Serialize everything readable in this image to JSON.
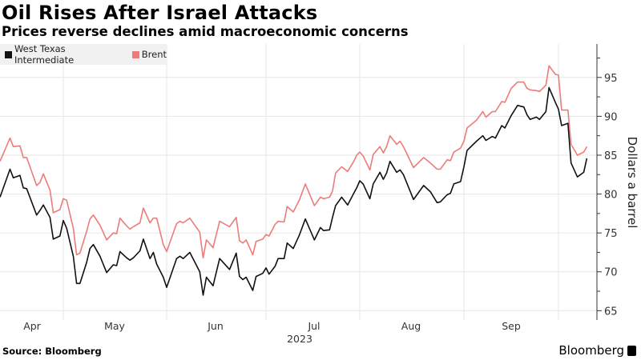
{
  "header": {
    "title": "Oil Rises After Israel Attacks",
    "subtitle": "Prices reverse declines amid macroeconomic concerns"
  },
  "footer": {
    "source": "Source: Bloomberg",
    "logo": "Bloomberg"
  },
  "chart_data": {
    "type": "line",
    "title": "Oil Rises After Israel Attacks",
    "subtitle": "Prices reverse declines amid macroeconomic concerns",
    "ylabel": "Dollars a barrel",
    "xlabel": "2023",
    "x_tick_labels": [
      "Apr",
      "May",
      "Jun",
      "Jul",
      "Aug",
      "Sep"
    ],
    "y_ticks": [
      65,
      70,
      75,
      80,
      85,
      90,
      95
    ],
    "ylim": [
      63.8,
      99.3
    ],
    "y_axis_side": "right",
    "grid": true,
    "legend_placement": "top-left",
    "x": [
      "2023-04-12",
      "2023-04-15",
      "2023-04-16",
      "2023-04-18",
      "2023-04-19",
      "2023-04-20",
      "2023-04-23",
      "2023-04-24",
      "2023-04-25",
      "2023-04-27",
      "2023-04-28",
      "2023-04-30",
      "2023-05-01",
      "2023-05-02",
      "2023-05-04",
      "2023-05-05",
      "2023-05-06",
      "2023-05-08",
      "2023-05-09",
      "2023-05-10",
      "2023-05-12",
      "2023-05-14",
      "2023-05-16",
      "2023-05-17",
      "2023-05-18",
      "2023-05-20",
      "2023-05-21",
      "2023-05-22",
      "2023-05-24",
      "2023-05-25",
      "2023-05-27",
      "2023-05-28",
      "2023-05-29",
      "2023-05-31",
      "2023-06-01",
      "2023-06-04",
      "2023-06-05",
      "2023-06-06",
      "2023-06-08",
      "2023-06-11",
      "2023-06-12",
      "2023-06-13",
      "2023-06-15",
      "2023-06-17",
      "2023-06-20",
      "2023-06-22",
      "2023-06-23",
      "2023-06-24",
      "2023-06-25",
      "2023-06-27",
      "2023-06-28",
      "2023-06-30",
      "2023-07-01",
      "2023-07-02",
      "2023-07-04",
      "2023-07-05",
      "2023-07-07",
      "2023-07-08",
      "2023-07-10",
      "2023-07-12",
      "2023-07-14",
      "2023-07-17",
      "2023-07-19",
      "2023-07-20",
      "2023-07-22",
      "2023-07-23",
      "2023-07-24",
      "2023-07-26",
      "2023-07-28",
      "2023-07-30",
      "2023-07-31",
      "2023-08-01",
      "2023-08-02",
      "2023-08-04",
      "2023-08-05",
      "2023-08-07",
      "2023-08-08",
      "2023-08-09",
      "2023-08-10",
      "2023-08-12",
      "2023-08-13",
      "2023-08-14",
      "2023-08-17",
      "2023-08-20",
      "2023-08-22",
      "2023-08-24",
      "2023-08-25",
      "2023-08-27",
      "2023-08-28",
      "2023-08-29",
      "2023-08-31",
      "2023-09-01",
      "2023-09-02",
      "2023-09-05",
      "2023-09-07",
      "2023-09-08",
      "2023-09-10",
      "2023-09-11",
      "2023-09-13",
      "2023-09-14",
      "2023-09-16",
      "2023-09-18",
      "2023-09-20",
      "2023-09-21",
      "2023-09-22",
      "2023-09-24",
      "2023-09-25",
      "2023-09-27",
      "2023-09-28",
      "2023-09-30",
      "2023-10-01",
      "2023-10-02",
      "2023-10-04",
      "2023-10-05",
      "2023-10-07",
      "2023-10-09",
      "2023-10-10"
    ],
    "series": [
      {
        "name": "West Texas Intermediate",
        "color": "#111111",
        "values": [
          79.6,
          83.2,
          82.1,
          82.4,
          80.8,
          80.7,
          77.3,
          77.9,
          78.6,
          77.0,
          74.2,
          74.6,
          76.6,
          75.6,
          72.0,
          68.5,
          68.5,
          71.2,
          73.0,
          73.5,
          72.0,
          69.9,
          70.9,
          70.8,
          72.6,
          71.8,
          71.5,
          71.8,
          72.7,
          74.2,
          71.7,
          72.5,
          71.0,
          69.3,
          68.0,
          71.7,
          72.0,
          71.7,
          72.5,
          70.0,
          67.0,
          69.3,
          68.2,
          71.7,
          70.3,
          72.4,
          69.4,
          69.0,
          69.3,
          67.6,
          69.4,
          69.8,
          70.5,
          69.7,
          70.7,
          71.7,
          71.7,
          73.7,
          73.0,
          74.7,
          76.8,
          74.1,
          75.7,
          75.3,
          75.4,
          77.0,
          78.5,
          79.6,
          78.6,
          80.1,
          80.8,
          81.7,
          81.3,
          79.4,
          81.3,
          82.8,
          81.9,
          82.7,
          84.2,
          82.8,
          83.1,
          82.5,
          79.3,
          81.1,
          80.3,
          78.9,
          79.0,
          79.9,
          80.1,
          81.3,
          81.6,
          83.5,
          85.6,
          86.8,
          87.5,
          86.9,
          87.4,
          87.2,
          88.8,
          88.5,
          90.1,
          91.4,
          91.2,
          90.2,
          89.6,
          89.9,
          89.6,
          90.6,
          93.7,
          91.8,
          90.9,
          88.8,
          89.1,
          84.0,
          82.2,
          82.8,
          84.6
        ]
      },
      {
        "name": "Brent",
        "color": "#ec7b7a",
        "values": [
          84.2,
          87.2,
          86.1,
          86.2,
          84.7,
          84.7,
          81.1,
          81.5,
          82.6,
          80.5,
          77.6,
          78.0,
          79.4,
          79.2,
          75.6,
          72.2,
          72.4,
          75.2,
          76.8,
          77.3,
          76.0,
          74.1,
          75.0,
          74.9,
          76.9,
          75.9,
          75.5,
          75.8,
          76.3,
          78.2,
          76.3,
          76.9,
          76.9,
          73.5,
          72.6,
          76.2,
          76.5,
          76.3,
          76.9,
          75.1,
          71.8,
          74.1,
          73.1,
          76.5,
          75.8,
          77.0,
          74.0,
          73.7,
          74.1,
          72.2,
          73.9,
          74.2,
          74.8,
          74.6,
          76.1,
          76.5,
          76.4,
          78.4,
          77.7,
          79.2,
          81.3,
          78.5,
          79.6,
          79.4,
          79.6,
          80.4,
          82.7,
          83.5,
          82.9,
          84.2,
          85.0,
          85.4,
          84.9,
          83.1,
          85.1,
          86.1,
          85.3,
          86.1,
          87.5,
          86.4,
          86.8,
          86.1,
          83.4,
          84.7,
          84.0,
          83.2,
          83.2,
          84.4,
          84.3,
          85.4,
          85.9,
          86.8,
          88.5,
          89.5,
          90.6,
          89.9,
          90.6,
          90.6,
          91.9,
          91.8,
          93.6,
          94.4,
          94.4,
          93.6,
          93.4,
          93.3,
          93.2,
          94.0,
          96.5,
          95.4,
          95.3,
          90.8,
          90.8,
          86.4,
          85.0,
          85.4,
          86.1
        ]
      }
    ]
  }
}
